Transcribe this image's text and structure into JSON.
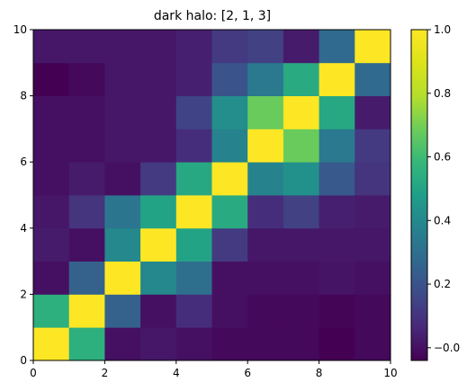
{
  "chart_data": {
    "type": "heatmap",
    "title": "dark halo: [2, 1, 3]",
    "xlabel": "",
    "ylabel": "",
    "xlim": [
      0,
      10
    ],
    "ylim": [
      0,
      10
    ],
    "x_ticks": [
      "0",
      "2",
      "4",
      "6",
      "8",
      "10"
    ],
    "y_ticks": [
      "0",
      "2",
      "4",
      "6",
      "8",
      "10"
    ],
    "colorbar": {
      "range": [
        -0.04,
        1.0
      ],
      "ticks": [
        "−0.0",
        "0.2",
        "0.4",
        "0.6",
        "0.8",
        "1.0"
      ],
      "tick_values": [
        0.0,
        0.2,
        0.4,
        0.6,
        0.8,
        1.0
      ],
      "colormap": "viridis"
    },
    "rows_bottom_to_top": [
      [
        1.0,
        0.55,
        0.0,
        0.02,
        0.0,
        -0.02,
        -0.02,
        -0.02,
        -0.04,
        -0.02
      ],
      [
        0.55,
        1.0,
        0.25,
        0.0,
        0.08,
        0.0,
        -0.02,
        -0.02,
        -0.03,
        -0.02
      ],
      [
        0.0,
        0.25,
        1.0,
        0.4,
        0.3,
        0.0,
        0.0,
        0.0,
        0.01,
        0.0
      ],
      [
        0.03,
        0.0,
        0.4,
        1.0,
        0.5,
        0.12,
        0.02,
        0.02,
        0.02,
        0.02
      ],
      [
        0.02,
        0.1,
        0.33,
        0.5,
        1.0,
        0.53,
        0.08,
        0.14,
        0.04,
        0.03
      ],
      [
        0.0,
        0.03,
        0.0,
        0.12,
        0.52,
        1.0,
        0.38,
        0.43,
        0.22,
        0.1
      ],
      [
        0.0,
        0.0,
        0.02,
        0.02,
        0.08,
        0.38,
        1.0,
        0.68,
        0.34,
        0.12
      ],
      [
        0.0,
        0.0,
        0.02,
        0.02,
        0.15,
        0.42,
        0.68,
        1.0,
        0.52,
        0.03
      ],
      [
        -0.04,
        -0.02,
        0.02,
        0.02,
        0.04,
        0.2,
        0.34,
        0.53,
        1.0,
        0.28
      ],
      [
        0.02,
        0.02,
        0.02,
        0.02,
        0.04,
        0.12,
        0.14,
        0.03,
        0.28,
        1.0
      ]
    ]
  }
}
